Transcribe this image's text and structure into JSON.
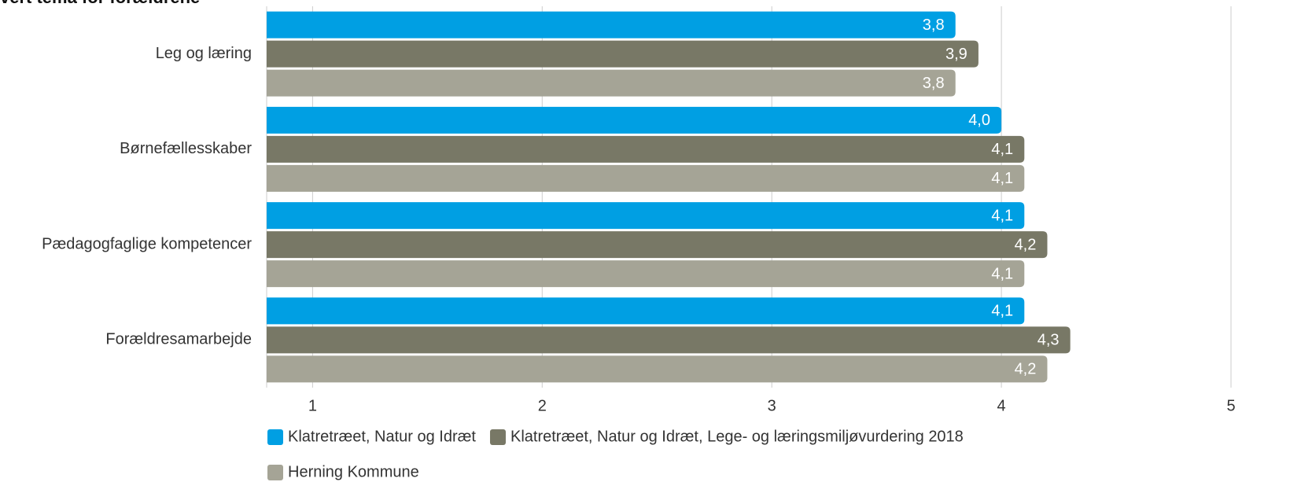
{
  "chart_data": {
    "type": "barh",
    "title": "vert tema for forældrene",
    "categories": [
      "Leg og læring",
      "Børnefællesskaber",
      "Pædagogfaglige kompetencer",
      "Forældresamarbejde"
    ],
    "series": [
      {
        "name": "Klatretræet, Natur og Idræt",
        "color": "#009fe3",
        "values": [
          3.8,
          4.0,
          4.1,
          4.1
        ],
        "value_labels": [
          "3,8",
          "4,0",
          "4,1",
          "4,1"
        ]
      },
      {
        "name": "Klatretræet, Natur og Idræt, Lege- og læringsmiljøvurdering 2018",
        "color": "#787866",
        "values": [
          3.9,
          4.1,
          4.2,
          4.3
        ],
        "value_labels": [
          "3,9",
          "4,1",
          "4,2",
          "4,3"
        ]
      },
      {
        "name": "Herning Kommune",
        "color": "#a5a496",
        "values": [
          3.8,
          4.1,
          4.1,
          4.2
        ],
        "value_labels": [
          "3,8",
          "4,1",
          "4,1",
          "4,2"
        ]
      }
    ],
    "xlim": [
      0.8,
      5
    ],
    "xticks": [
      1,
      2,
      3,
      4,
      5
    ],
    "grid": true
  }
}
